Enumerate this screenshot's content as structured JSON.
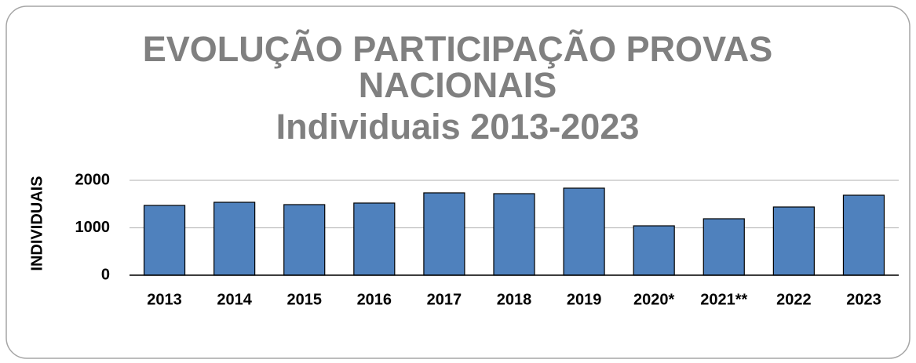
{
  "chart_data": {
    "type": "bar",
    "title": "EVOLUÇÃO PARTICIPAÇÃO PROVAS NACIONAIS",
    "subtitle": "Individuais 2013-2023",
    "y_label": "INDIVIDUAIS",
    "categories": [
      "2013",
      "2014",
      "2015",
      "2016",
      "2017",
      "2018",
      "2019",
      "2020*",
      "2021**",
      "2022",
      "2023"
    ],
    "values": [
      1471,
      1537,
      1488,
      1521,
      1736,
      1719,
      1835,
      1041,
      1190,
      1438,
      1686
    ],
    "color": "#4f81bd",
    "ylim": [
      0,
      2000
    ],
    "yticks": [
      0,
      1000,
      2000
    ],
    "grid": true
  }
}
